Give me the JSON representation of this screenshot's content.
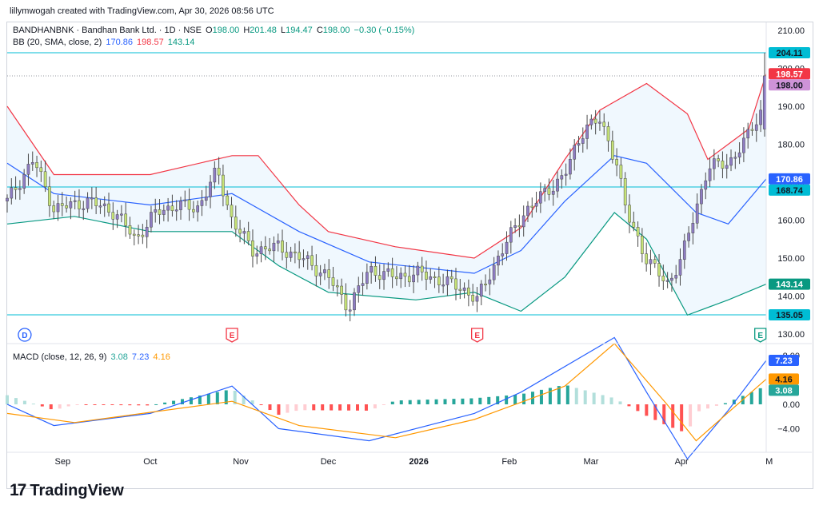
{
  "header": {
    "created_by": "lillymwogah created with TradingView.com, Apr 30, 2026 08:56 UTC"
  },
  "symbol": {
    "title": "BANDHANBNK · Bandhan Bank Ltd. · 1D · NSE",
    "o_label": "O",
    "open": "198.00",
    "h_label": "H",
    "high": "201.48",
    "l_label": "L",
    "low": "194.47",
    "c_label": "C",
    "close": "198.00",
    "change": "−0.30 (−0.15%)"
  },
  "bb_legend": {
    "label": "BB (20, SMA, close, 2)",
    "basis": "170.86",
    "upper": "198.57",
    "lower": "143.14"
  },
  "macd_legend": {
    "label": "MACD (close, 12, 26, 9)",
    "hist": "3.08",
    "macd": "7.23",
    "signal": "4.16"
  },
  "colors": {
    "up": "#089981",
    "down": "#f23645",
    "upper_band": "#f23645",
    "basis": "#2962ff",
    "lower_band": "#089981",
    "band_fill": "#e3f2fd",
    "macd_line": "#2962ff",
    "signal_line": "#ff9800",
    "hist_pos_strong": "#26a69a",
    "hist_pos_weak": "#b2dfdb",
    "hist_neg_strong": "#ff5252",
    "hist_neg_weak": "#ffcdd2",
    "hline": "#00bcd4",
    "candle_up": "#8e7cc3",
    "candle_down": "#c6e377"
  },
  "price_axis": [
    "210.00",
    "200.00",
    "190.00",
    "180.00",
    "170.00",
    "160.00",
    "150.00",
    "140.00",
    "130.00"
  ],
  "price_tags": [
    {
      "text": "204.11",
      "bg": "#00bcd4",
      "fg": "#131722",
      "value": 204.11
    },
    {
      "text": "198.57",
      "bg": "#f23645",
      "fg": "#ffffff",
      "value": 198.57
    },
    {
      "text": "198.00",
      "bg": "#ce93d8",
      "fg": "#131722",
      "value": 198.0
    },
    {
      "text": "170.86",
      "bg": "#2962ff",
      "fg": "#ffffff",
      "value": 170.86
    },
    {
      "text": "168.74",
      "bg": "#00bcd4",
      "fg": "#131722",
      "value": 168.74
    },
    {
      "text": "143.14",
      "bg": "#089981",
      "fg": "#ffffff",
      "value": 143.14
    },
    {
      "text": "135.05",
      "bg": "#00bcd4",
      "fg": "#131722",
      "value": 135.05
    }
  ],
  "horizontal_lines": [
    204.11,
    168.74,
    135.05
  ],
  "macd_axis": [
    "8.00",
    "0.00",
    "−4.00"
  ],
  "macd_tags": [
    {
      "text": "7.23",
      "bg": "#2962ff",
      "fg": "#ffffff",
      "value": 7.23
    },
    {
      "text": "4.16",
      "bg": "#ff9800",
      "fg": "#131722",
      "value": 4.16
    },
    {
      "text": "3.08",
      "bg": "#26a69a",
      "fg": "#ffffff",
      "value": 3.08
    }
  ],
  "time_axis": [
    "Sep",
    "Oct",
    "Nov",
    "Dec",
    "2026",
    "Feb",
    "Mar",
    "Apr",
    "M"
  ],
  "events": [
    {
      "letter": "D",
      "kind": "dividend"
    },
    {
      "letter": "E",
      "kind": "earnings"
    },
    {
      "letter": "E",
      "kind": "earnings"
    },
    {
      "letter": "E",
      "kind": "earnings"
    }
  ],
  "logo": {
    "text": "TradingView",
    "mark": "17"
  },
  "chart_data": {
    "type": "candlestick",
    "title": "BANDHANBNK · Bandhan Bank Ltd. · 1D · NSE",
    "ylim": [
      130,
      210
    ],
    "x_range": [
      "2025-08-13",
      "2026-04-30"
    ],
    "close": [
      {
        "x": "2025-08-13",
        "y": 165
      },
      {
        "x": "2025-08-22",
        "y": 176
      },
      {
        "x": "2025-08-29",
        "y": 163
      },
      {
        "x": "2025-09-10",
        "y": 165
      },
      {
        "x": "2025-09-19",
        "y": 162
      },
      {
        "x": "2025-09-26",
        "y": 155
      },
      {
        "x": "2025-10-03",
        "y": 162
      },
      {
        "x": "2025-10-10",
        "y": 164
      },
      {
        "x": "2025-10-17",
        "y": 163
      },
      {
        "x": "2025-10-24",
        "y": 173
      },
      {
        "x": "2025-10-29",
        "y": 160
      },
      {
        "x": "2025-11-05",
        "y": 152
      },
      {
        "x": "2025-11-14",
        "y": 153
      },
      {
        "x": "2025-11-24",
        "y": 149
      },
      {
        "x": "2025-12-01",
        "y": 145
      },
      {
        "x": "2025-12-08",
        "y": 137
      },
      {
        "x": "2025-12-15",
        "y": 147
      },
      {
        "x": "2025-12-24",
        "y": 145
      },
      {
        "x": "2026-01-01",
        "y": 146
      },
      {
        "x": "2026-01-09",
        "y": 144
      },
      {
        "x": "2026-01-16",
        "y": 142
      },
      {
        "x": "2026-01-21",
        "y": 139
      },
      {
        "x": "2026-01-28",
        "y": 150
      },
      {
        "x": "2026-02-06",
        "y": 162
      },
      {
        "x": "2026-02-13",
        "y": 167
      },
      {
        "x": "2026-02-20",
        "y": 172
      },
      {
        "x": "2026-02-27",
        "y": 185
      },
      {
        "x": "2026-03-04",
        "y": 186
      },
      {
        "x": "2026-03-10",
        "y": 175
      },
      {
        "x": "2026-03-13",
        "y": 162
      },
      {
        "x": "2026-03-20",
        "y": 150
      },
      {
        "x": "2026-03-27",
        "y": 143
      },
      {
        "x": "2026-04-01",
        "y": 150
      },
      {
        "x": "2026-04-06",
        "y": 163
      },
      {
        "x": "2026-04-10",
        "y": 174
      },
      {
        "x": "2026-04-17",
        "y": 175
      },
      {
        "x": "2026-04-23",
        "y": 181
      },
      {
        "x": "2026-04-29",
        "y": 190
      },
      {
        "x": "2026-04-30",
        "y": 198
      }
    ],
    "bb_upper": [
      {
        "x": "2025-08-13",
        "y": 190
      },
      {
        "x": "2025-08-29",
        "y": 172
      },
      {
        "x": "2025-10-01",
        "y": 172
      },
      {
        "x": "2025-10-29",
        "y": 177
      },
      {
        "x": "2025-11-07",
        "y": 177
      },
      {
        "x": "2025-11-21",
        "y": 164
      },
      {
        "x": "2025-12-01",
        "y": 157
      },
      {
        "x": "2025-12-24",
        "y": 153
      },
      {
        "x": "2026-01-20",
        "y": 150
      },
      {
        "x": "2026-02-05",
        "y": 158
      },
      {
        "x": "2026-02-20",
        "y": 176
      },
      {
        "x": "2026-03-04",
        "y": 189
      },
      {
        "x": "2026-03-20",
        "y": 196
      },
      {
        "x": "2026-04-03",
        "y": 188
      },
      {
        "x": "2026-04-10",
        "y": 176
      },
      {
        "x": "2026-04-24",
        "y": 184
      },
      {
        "x": "2026-04-30",
        "y": 198.57
      }
    ],
    "bb_basis": [
      {
        "x": "2025-08-13",
        "y": 175
      },
      {
        "x": "2025-08-29",
        "y": 167
      },
      {
        "x": "2025-10-01",
        "y": 164
      },
      {
        "x": "2025-10-29",
        "y": 167
      },
      {
        "x": "2025-11-21",
        "y": 157
      },
      {
        "x": "2025-12-15",
        "y": 149
      },
      {
        "x": "2026-01-20",
        "y": 146
      },
      {
        "x": "2026-02-05",
        "y": 152
      },
      {
        "x": "2026-02-20",
        "y": 165
      },
      {
        "x": "2026-03-09",
        "y": 177
      },
      {
        "x": "2026-03-20",
        "y": 175
      },
      {
        "x": "2026-04-06",
        "y": 162
      },
      {
        "x": "2026-04-17",
        "y": 159
      },
      {
        "x": "2026-04-30",
        "y": 170.86
      }
    ],
    "bb_lower": [
      {
        "x": "2025-08-13",
        "y": 159
      },
      {
        "x": "2025-09-05",
        "y": 161
      },
      {
        "x": "2025-10-01",
        "y": 157
      },
      {
        "x": "2025-10-29",
        "y": 157
      },
      {
        "x": "2025-11-14",
        "y": 148
      },
      {
        "x": "2025-12-01",
        "y": 141
      },
      {
        "x": "2025-12-31",
        "y": 139
      },
      {
        "x": "2026-01-20",
        "y": 141
      },
      {
        "x": "2026-02-05",
        "y": 136
      },
      {
        "x": "2026-02-20",
        "y": 145
      },
      {
        "x": "2026-03-09",
        "y": 162
      },
      {
        "x": "2026-03-20",
        "y": 155
      },
      {
        "x": "2026-04-03",
        "y": 135
      },
      {
        "x": "2026-04-17",
        "y": 139
      },
      {
        "x": "2026-04-30",
        "y": 143.14
      }
    ],
    "macd": [
      {
        "x": "2025-08-13",
        "y": 0
      },
      {
        "x": "2025-08-29",
        "y": -3.5
      },
      {
        "x": "2025-10-01",
        "y": -1.5
      },
      {
        "x": "2025-10-29",
        "y": 3
      },
      {
        "x": "2025-11-14",
        "y": -4
      },
      {
        "x": "2025-12-15",
        "y": -6
      },
      {
        "x": "2026-01-20",
        "y": -1.5
      },
      {
        "x": "2026-02-05",
        "y": 2
      },
      {
        "x": "2026-03-09",
        "y": 11
      },
      {
        "x": "2026-03-20",
        "y": 2
      },
      {
        "x": "2026-04-03",
        "y": -9
      },
      {
        "x": "2026-04-17",
        "y": -1
      },
      {
        "x": "2026-04-30",
        "y": 7.23
      }
    ],
    "signal": [
      {
        "x": "2025-08-13",
        "y": -1.5
      },
      {
        "x": "2025-09-05",
        "y": -3
      },
      {
        "x": "2025-10-29",
        "y": 0.5
      },
      {
        "x": "2025-11-21",
        "y": -3.5
      },
      {
        "x": "2025-12-24",
        "y": -5.5
      },
      {
        "x": "2026-01-20",
        "y": -2.5
      },
      {
        "x": "2026-02-20",
        "y": 3
      },
      {
        "x": "2026-03-09",
        "y": 10
      },
      {
        "x": "2026-03-27",
        "y": 0
      },
      {
        "x": "2026-04-06",
        "y": -6
      },
      {
        "x": "2026-04-30",
        "y": 4.16
      }
    ],
    "macd_ylim": [
      -8,
      12
    ]
  }
}
